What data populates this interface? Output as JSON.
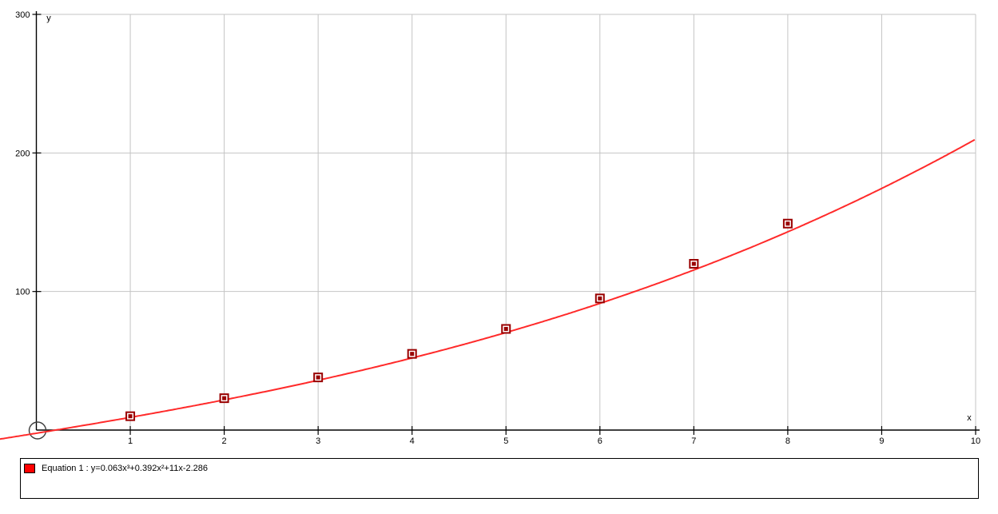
{
  "window": {
    "background": "#ffffff"
  },
  "chart_data": {
    "type": "line",
    "title": "",
    "xlabel": "x",
    "ylabel": "y",
    "xlim": [
      0,
      10
    ],
    "ylim": [
      0,
      300
    ],
    "x_ticks": [
      1,
      2,
      3,
      4,
      5,
      6,
      7,
      8,
      9,
      10
    ],
    "y_ticks": [
      100,
      200,
      300
    ],
    "grid": true,
    "grid_color": "#c4c4c4",
    "axis_color": "#000000",
    "origin_marker": {
      "shape": "circle",
      "color": "#3c3c3c"
    },
    "series": [
      {
        "name": "equation-1-curve",
        "type": "function",
        "equation": "y=0.063x³+0.392x²+11x-2.286",
        "coefficients": [
          -2.286,
          11,
          0.392,
          0.063
        ],
        "color": "#ff2a2a",
        "x_range": [
          -0.39,
          10
        ]
      },
      {
        "name": "data-points",
        "type": "scatter",
        "marker": "square",
        "color": "#990000",
        "points": [
          [
            1,
            10
          ],
          [
            2,
            23
          ],
          [
            3,
            38
          ],
          [
            4,
            55
          ],
          [
            5,
            73
          ],
          [
            6,
            95
          ],
          [
            7,
            120
          ],
          [
            8,
            149
          ]
        ]
      }
    ],
    "legend": {
      "position": "bottom",
      "entries": [
        {
          "swatch_color": "#ff0000",
          "label": "Equation 1 : y=0.063x³+0.392x²+11x-2.286"
        }
      ]
    }
  }
}
